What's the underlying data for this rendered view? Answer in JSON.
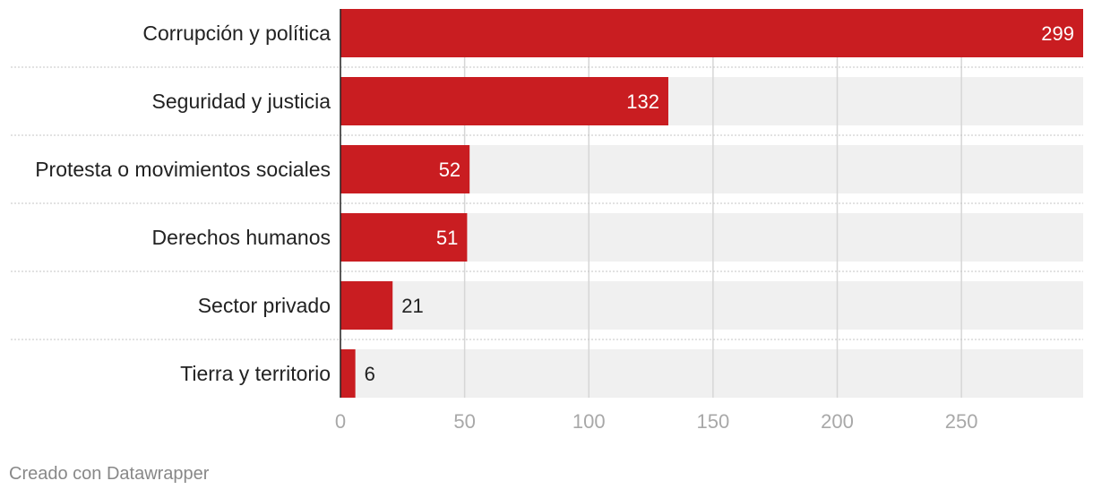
{
  "chart_data": {
    "type": "bar",
    "orientation": "horizontal",
    "categories": [
      "Corrupción y política",
      "Seguridad y justicia",
      "Protesta o movimientos sociales",
      "Derechos humanos",
      "Sector privado",
      "Tierra y territorio"
    ],
    "values": [
      299,
      132,
      52,
      51,
      21,
      6
    ],
    "value_labels": [
      "299",
      "132",
      "52",
      "51",
      "21",
      "6"
    ],
    "xlim": [
      0,
      299
    ],
    "xticks": [
      0,
      50,
      100,
      150,
      200,
      250
    ],
    "xtick_labels": [
      "0",
      "50",
      "100",
      "150",
      "200",
      "250"
    ],
    "grid": true,
    "bar_color": "#c91d21",
    "background_bar_color": "#f0f0f0"
  },
  "footer": {
    "credit": "Creado con Datawrapper"
  }
}
